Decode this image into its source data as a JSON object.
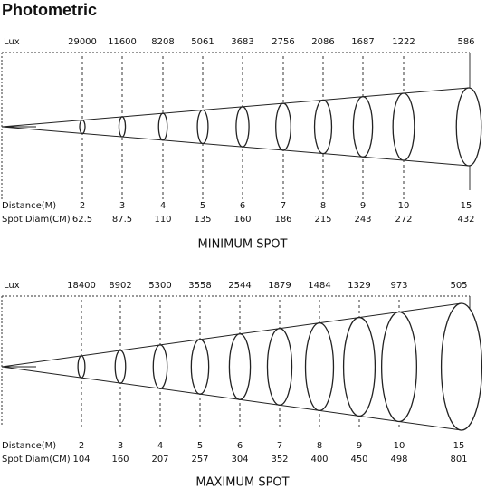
{
  "header": {
    "title": "Photometric"
  },
  "panels": [
    {
      "lux_label": "Lux",
      "lux": [
        29000,
        11600,
        8208,
        5061,
        3683,
        2756,
        2086,
        1687,
        1222,
        586
      ],
      "distance_label": "Distance(M)",
      "distances": [
        2,
        3,
        4,
        5,
        6,
        7,
        8,
        9,
        10,
        15
      ],
      "spot_label": "Spot Diam(CM)",
      "spots": [
        62.5,
        87.5,
        110,
        135,
        160,
        186,
        215,
        243,
        272,
        432
      ],
      "caption": "MINIMUM SPOT"
    },
    {
      "lux_label": "Lux",
      "lux": [
        18400,
        8902,
        5300,
        3558,
        2544,
        1879,
        1484,
        1329,
        973,
        505
      ],
      "distance_label": "Distance(M)",
      "distances": [
        2,
        3,
        4,
        5,
        6,
        7,
        8,
        9,
        10,
        15
      ],
      "spot_label": "Spot Diam(CM)",
      "spots": [
        104,
        160,
        207,
        257,
        304,
        352,
        400,
        450,
        498,
        801
      ],
      "caption": "MAXIMUM SPOT"
    }
  ]
}
